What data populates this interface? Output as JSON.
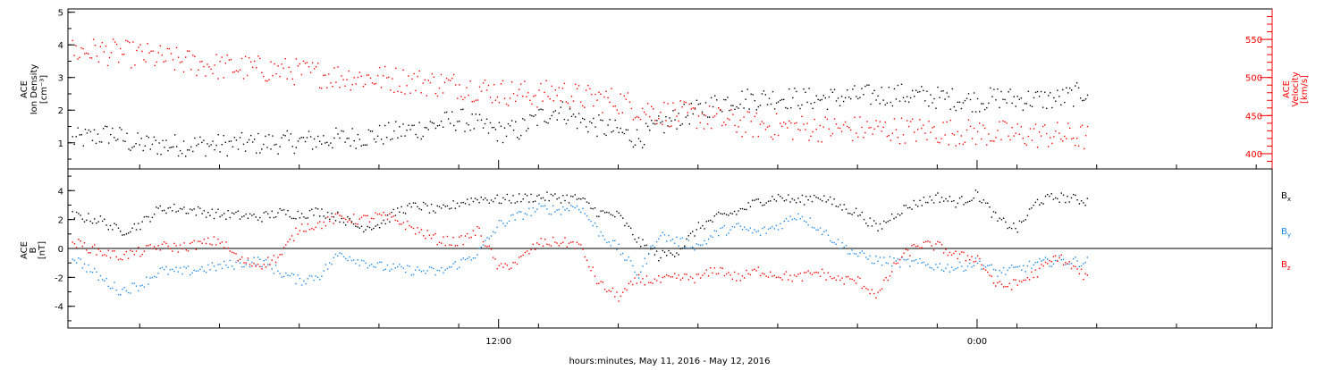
{
  "colors": {
    "black": "#000000",
    "red": "#ff0000",
    "blue": "#1e88e5"
  },
  "xlabel": "hours:minutes, May 11, 2016 - May 12, 2016",
  "xticks": [
    "12:00",
    "0:00"
  ],
  "chart_data": [
    {
      "type": "scatter",
      "title": "",
      "ylabel": [
        "ACE",
        "Ion Density",
        "[cm⁻³]"
      ],
      "ylabel_right": [
        "ACE",
        "Velocity",
        "[km/s]"
      ],
      "ylim": [
        0.2,
        5.1
      ],
      "ylim_right": [
        380,
        590
      ],
      "yticks": [
        "1",
        "2",
        "3",
        "4",
        "5"
      ],
      "yticks_right": [
        "400",
        "450",
        "500",
        "550"
      ],
      "x_unit": "hours since 2016-05-11 00:00",
      "xlim": [
        1.2,
        31.4
      ],
      "series": [
        {
          "name": "",
          "axis": "left",
          "color": "black",
          "points": [
            [
              1.3,
              1.1
            ],
            [
              1.8,
              1.2
            ],
            [
              2.3,
              1.3
            ],
            [
              2.8,
              1.0
            ],
            [
              3.3,
              0.95
            ],
            [
              4,
              0.95
            ],
            [
              5,
              0.95
            ],
            [
              6,
              1.0
            ],
            [
              7,
              1.05
            ],
            [
              8,
              1.15
            ],
            [
              9,
              1.25
            ],
            [
              10,
              1.45
            ],
            [
              10.5,
              1.6
            ],
            [
              11,
              1.75
            ],
            [
              11.6,
              1.5
            ],
            [
              12,
              1.35
            ],
            [
              12.5,
              1.4
            ],
            [
              13,
              1.8
            ],
            [
              13.5,
              2.05
            ],
            [
              14,
              1.7
            ],
            [
              15,
              1.35
            ],
            [
              15.5,
              1.15
            ],
            [
              16,
              1.5
            ],
            [
              16.5,
              1.8
            ],
            [
              17,
              2.0
            ],
            [
              17.5,
              2.25
            ],
            [
              18,
              2.35
            ],
            [
              19,
              2.4
            ],
            [
              20,
              2.35
            ],
            [
              21,
              2.45
            ],
            [
              22,
              2.5
            ],
            [
              23,
              2.4
            ],
            [
              24,
              2.3
            ],
            [
              24.5,
              2.4
            ],
            [
              25,
              2.35
            ],
            [
              26,
              2.35
            ],
            [
              26.8,
              2.6
            ]
          ]
        },
        {
          "name": "",
          "axis": "right",
          "color": "red",
          "points": [
            [
              1.3,
              535
            ],
            [
              2,
              535
            ],
            [
              3,
              530
            ],
            [
              4,
              522
            ],
            [
              5,
              515
            ],
            [
              6,
              512
            ],
            [
              7,
              508
            ],
            [
              8,
              502
            ],
            [
              9,
              500
            ],
            [
              10,
              495
            ],
            [
              11,
              490
            ],
            [
              11.6,
              485
            ],
            [
              12,
              482
            ],
            [
              13,
              478
            ],
            [
              13.5,
              482
            ],
            [
              14,
              475
            ],
            [
              15,
              470
            ],
            [
              15.5,
              460
            ],
            [
              16,
              455
            ],
            [
              17,
              450
            ],
            [
              18,
              440
            ],
            [
              19,
              436
            ],
            [
              20,
              434
            ],
            [
              21,
              433
            ],
            [
              22,
              432
            ],
            [
              23,
              430
            ],
            [
              24,
              428
            ],
            [
              25,
              426
            ],
            [
              26,
              425
            ],
            [
              26.8,
              422
            ]
          ]
        }
      ]
    },
    {
      "type": "scatter",
      "title": "",
      "ylabel": [
        "ACE",
        "B",
        "[nT]"
      ],
      "ylim": [
        -5.5,
        5.5
      ],
      "yticks": [
        "-4",
        "-2",
        "0",
        "2",
        "4"
      ],
      "x_unit": "hours since 2016-05-11 00:00",
      "xlim": [
        1.2,
        31.4
      ],
      "legend": [
        "Bx",
        "By",
        "Bz"
      ],
      "legend_position": "right",
      "series": [
        {
          "name": "Bx",
          "color": "black",
          "points": [
            [
              1.3,
              2.3
            ],
            [
              2,
              2.0
            ],
            [
              2.5,
              1.2
            ],
            [
              3,
              1.7
            ],
            [
              3.5,
              2.8
            ],
            [
              4,
              2.8
            ],
            [
              5,
              2.4
            ],
            [
              6,
              2.2
            ],
            [
              6.5,
              2.5
            ],
            [
              7,
              2.4
            ],
            [
              7.5,
              2.6
            ],
            [
              8,
              2.2
            ],
            [
              8.5,
              1.5
            ],
            [
              9,
              1.7
            ],
            [
              9.5,
              2.7
            ],
            [
              10,
              3.0
            ],
            [
              10.5,
              2.6
            ],
            [
              11,
              3.2
            ],
            [
              11.5,
              3.5
            ],
            [
              12,
              3.4
            ],
            [
              13,
              3.6
            ],
            [
              14,
              3.5
            ],
            [
              14.5,
              2.5
            ],
            [
              15,
              2.3
            ],
            [
              15.5,
              0.5
            ],
            [
              16,
              -0.5
            ],
            [
              16.5,
              -0.1
            ],
            [
              17,
              1.5
            ],
            [
              17.5,
              2.2
            ],
            [
              18,
              2.6
            ],
            [
              18.5,
              3.3
            ],
            [
              19,
              3.6
            ],
            [
              19.5,
              3.3
            ],
            [
              20,
              3.7
            ],
            [
              20.5,
              3.0
            ],
            [
              21,
              2.5
            ],
            [
              21.5,
              1.4
            ],
            [
              22,
              2.6
            ],
            [
              22.5,
              3.2
            ],
            [
              23,
              3.6
            ],
            [
              23.5,
              3.2
            ],
            [
              24,
              3.8
            ],
            [
              24.5,
              2.0
            ],
            [
              25,
              1.4
            ],
            [
              25.5,
              3.3
            ],
            [
              26,
              3.6
            ],
            [
              26.8,
              3.3
            ]
          ]
        },
        {
          "name": "By",
          "color": "blue",
          "points": [
            [
              1.3,
              -0.5
            ],
            [
              2,
              -2.0
            ],
            [
              2.5,
              -2.9
            ],
            [
              3,
              -2.5
            ],
            [
              3.5,
              -1.5
            ],
            [
              4,
              -1.6
            ],
            [
              5,
              -1.2
            ],
            [
              5.5,
              -1.0
            ],
            [
              6,
              -0.8
            ],
            [
              6.5,
              -1.6
            ],
            [
              7,
              -2.2
            ],
            [
              7.5,
              -1.8
            ],
            [
              8,
              -0.3
            ],
            [
              8.5,
              -0.8
            ],
            [
              9,
              -1.2
            ],
            [
              9.5,
              -1.4
            ],
            [
              10,
              -1.5
            ],
            [
              10.5,
              -1.6
            ],
            [
              11,
              -1.0
            ],
            [
              11.5,
              -0.2
            ],
            [
              12,
              1.7
            ],
            [
              12.5,
              2.3
            ],
            [
              13,
              2.8
            ],
            [
              13.5,
              2.7
            ],
            [
              14,
              3.0
            ],
            [
              14.5,
              1.2
            ],
            [
              15,
              0.0
            ],
            [
              15.5,
              -1.8
            ],
            [
              16,
              1.0
            ],
            [
              16.5,
              0.5
            ],
            [
              17,
              0.2
            ],
            [
              17.5,
              1.2
            ],
            [
              18,
              1.5
            ],
            [
              18.5,
              1.1
            ],
            [
              19,
              1.6
            ],
            [
              19.5,
              2.4
            ],
            [
              20,
              1.5
            ],
            [
              20.5,
              0.4
            ],
            [
              21,
              -0.4
            ],
            [
              21.5,
              -0.8
            ],
            [
              22,
              -0.9
            ],
            [
              22.5,
              -1.0
            ],
            [
              23,
              -1.2
            ],
            [
              23.5,
              -1.3
            ],
            [
              24,
              -0.9
            ],
            [
              24.5,
              -1.6
            ],
            [
              25,
              -1.4
            ],
            [
              25.5,
              -1.0
            ],
            [
              26,
              -0.8
            ],
            [
              26.8,
              -0.9
            ]
          ]
        },
        {
          "name": "Bz",
          "color": "red",
          "points": [
            [
              1.3,
              0.5
            ],
            [
              2,
              -0.2
            ],
            [
              2.5,
              -0.5
            ],
            [
              3,
              -0.2
            ],
            [
              3.5,
              0.2
            ],
            [
              4,
              0.1
            ],
            [
              5,
              0.6
            ],
            [
              5.5,
              -0.8
            ],
            [
              6,
              -1.1
            ],
            [
              6.5,
              -0.5
            ],
            [
              7,
              1.5
            ],
            [
              7.5,
              1.7
            ],
            [
              8,
              2.2
            ],
            [
              8.5,
              2.0
            ],
            [
              9,
              2.3
            ],
            [
              9.5,
              1.9
            ],
            [
              10,
              1.2
            ],
            [
              10.5,
              0.6
            ],
            [
              11,
              0.5
            ],
            [
              11.5,
              1.3
            ],
            [
              12,
              -1.4
            ],
            [
              12.5,
              -0.8
            ],
            [
              13,
              0.4
            ],
            [
              13.5,
              0.5
            ],
            [
              14,
              0.3
            ],
            [
              14.5,
              -2.4
            ],
            [
              15,
              -3.3
            ],
            [
              15.5,
              -2.1
            ],
            [
              16,
              -2.2
            ],
            [
              16.5,
              -2.0
            ],
            [
              17,
              -2.0
            ],
            [
              17.5,
              -1.4
            ],
            [
              18,
              -2.0
            ],
            [
              18.5,
              -1.5
            ],
            [
              19,
              -1.8
            ],
            [
              19.5,
              -2.0
            ],
            [
              20,
              -1.6
            ],
            [
              20.5,
              -2.1
            ],
            [
              21,
              -2.2
            ],
            [
              21.5,
              -3.2
            ],
            [
              22,
              -0.8
            ],
            [
              22.5,
              0.3
            ],
            [
              23,
              0.2
            ],
            [
              23.5,
              -0.5
            ],
            [
              24,
              -0.6
            ],
            [
              24.5,
              -2.6
            ],
            [
              25,
              -2.4
            ],
            [
              25.5,
              -1.6
            ],
            [
              26,
              -0.5
            ],
            [
              26.8,
              -2.1
            ]
          ]
        }
      ]
    }
  ]
}
